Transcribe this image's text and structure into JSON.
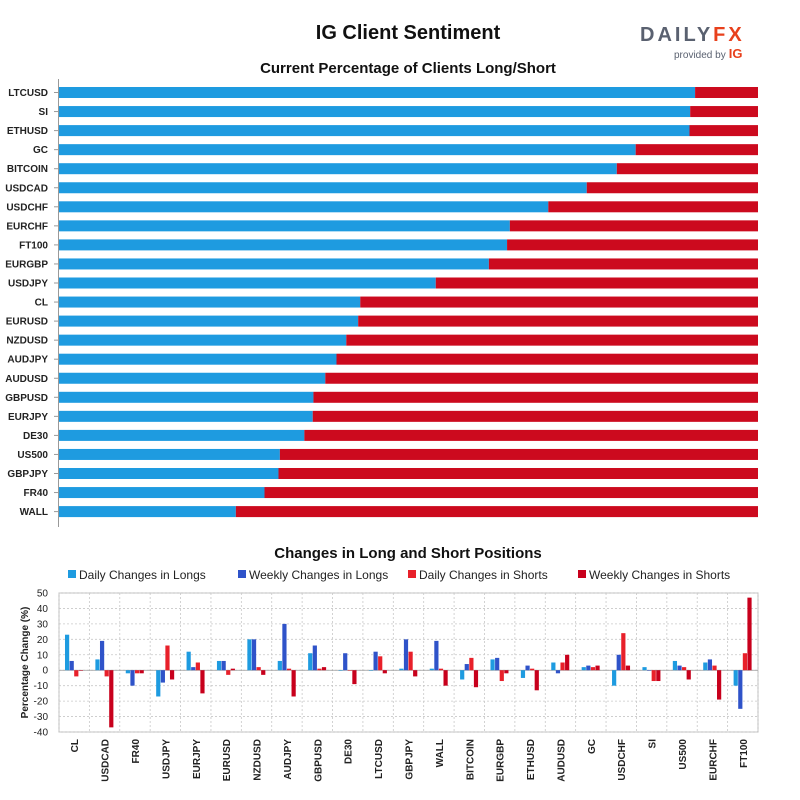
{
  "title": "IG Client Sentiment",
  "logo": {
    "word_main": "DAILY",
    "word_accent": "FX",
    "provided_by": "provided by",
    "brand": "IG"
  },
  "colors": {
    "long": "#1e9be0",
    "short": "#cc0a1e",
    "daily_longs": "#1e9be0",
    "weekly_longs": "#2f53c9",
    "daily_shorts": "#e8202a",
    "weekly_shorts": "#c8001c"
  },
  "chart_data": [
    {
      "type": "bar",
      "orientation": "horizontal",
      "stacked": true,
      "title": "Current Percentage of Clients Long/Short",
      "categories": [
        "LTCUSD",
        "SI",
        "ETHUSD",
        "GC",
        "BITCOIN",
        "USDCAD",
        "USDCHF",
        "EURCHF",
        "FT100",
        "EURGBP",
        "USDJPY",
        "CL",
        "EURUSD",
        "NZDUSD",
        "AUDJPY",
        "AUDUSD",
        "GBPUSD",
        "EURJPY",
        "DE30",
        "US500",
        "GBPJPY",
        "FR40",
        "WALL"
      ],
      "series": [
        {
          "values": [
            91,
            90.3,
            90.2,
            82.5,
            79.8,
            75.5,
            70,
            64.5,
            64.1,
            61.5,
            53.9,
            43.1,
            42.8,
            41.1,
            39.7,
            38.1,
            36.4,
            36.3,
            35.1,
            31.6,
            31.4,
            29.4,
            25.3
          ]
        },
        {
          "values": [
            9,
            9.7,
            9.8,
            17.5,
            20.2,
            24.5,
            30,
            35.5,
            35.9,
            38.5,
            46.1,
            56.9,
            57.2,
            58.9,
            60.3,
            61.9,
            63.6,
            63.7,
            64.9,
            68.4,
            68.6,
            70.6,
            74.7
          ]
        }
      ],
      "xlim": [
        0,
        100
      ],
      "grid": false,
      "legend": "none"
    },
    {
      "type": "bar",
      "title": "Changes in Long and Short Positions",
      "ylabel": "Percentage Change (%)",
      "ylim": [
        -40,
        50
      ],
      "yticks": [
        50,
        40,
        30,
        20,
        10,
        0,
        -10,
        -20,
        -30,
        -40
      ],
      "grid": true,
      "legend": "top",
      "categories": [
        "CL",
        "USDCAD",
        "FR40",
        "USDJPY",
        "EURJPY",
        "EURUSD",
        "NZDUSD",
        "AUDJPY",
        "GBPUSD",
        "DE30",
        "LTCUSD",
        "GBPJPY",
        "WALL",
        "BITCOIN",
        "EURGBP",
        "ETHUSD",
        "AUDUSD",
        "GC",
        "USDCHF",
        "SI",
        "US500",
        "EURCHF",
        "FT100"
      ],
      "series": [
        {
          "name": "Daily Changes in Longs",
          "values": [
            23,
            7,
            -2,
            -17,
            12,
            6,
            20,
            6,
            11,
            0,
            0,
            1,
            1,
            -6,
            7,
            -5,
            5,
            2,
            -10,
            2,
            6,
            5,
            -10
          ]
        },
        {
          "name": "Weekly Changes in Longs",
          "values": [
            6,
            19,
            -10,
            -8,
            2,
            6,
            20,
            30,
            16,
            11,
            12,
            20,
            19,
            4,
            8,
            3,
            -2,
            3,
            10,
            0,
            3,
            7,
            -25
          ]
        },
        {
          "name": "Daily Changes in Shorts",
          "values": [
            -4,
            -4,
            -2,
            16,
            5,
            -3,
            2,
            1,
            1,
            0,
            9,
            12,
            1,
            8,
            -7,
            1,
            5,
            2,
            24,
            -7,
            2,
            3,
            11
          ]
        },
        {
          "name": "Weekly Changes in Shorts",
          "values": [
            0,
            -37,
            -2,
            -6,
            -15,
            1,
            -3,
            -17,
            2,
            -9,
            -2,
            -4,
            -10,
            -11,
            -2,
            -13,
            10,
            3,
            3,
            -7,
            -6,
            -19,
            47
          ]
        }
      ]
    }
  ]
}
